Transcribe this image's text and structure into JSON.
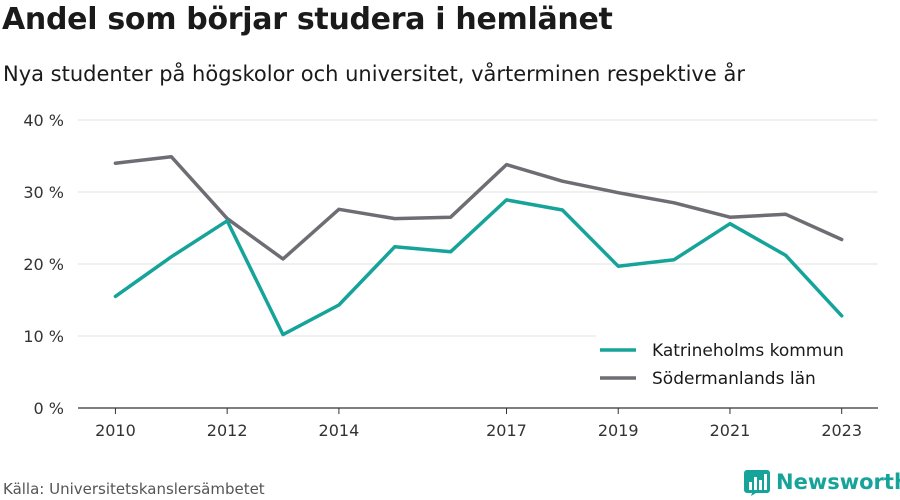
{
  "header": {
    "title": "Andel som börjar studera i hemlänet",
    "subtitle": "Nya studenter på högskolor och universitet, vårterminen respektive år"
  },
  "footer": {
    "source": "Källa: Universitetskanslersämbetet",
    "brand_name": "Newsworthy",
    "brand_icon": "bar-chart-icon"
  },
  "colors": {
    "katrineholm": "#16a39a",
    "sodermanland": "#6d6d73",
    "grid": "#e2e2e2",
    "axis": "#333333",
    "brand": "#16a39a"
  },
  "chart_data": {
    "type": "line",
    "x": [
      2010,
      2011,
      2012,
      2013,
      2014,
      2015,
      2016,
      2017,
      2018,
      2019,
      2020,
      2021,
      2022,
      2023
    ],
    "xticks": [
      "2010",
      "2012",
      "2014",
      "2017",
      "2019",
      "2021",
      "2023"
    ],
    "xtick_values": [
      2010,
      2012,
      2014,
      2017,
      2019,
      2021,
      2023
    ],
    "xlim": [
      2009.33,
      2023.65
    ],
    "ylim": [
      0,
      40
    ],
    "yticks": [
      "0 %",
      "10 %",
      "20 %",
      "30 %",
      "40 %"
    ],
    "ytick_values": [
      0,
      10,
      20,
      30,
      40
    ],
    "grid": true,
    "legend_position": "bottom-right",
    "series": [
      {
        "name": "Katrineholms kommun",
        "color": "#16a39a",
        "values": [
          15.5,
          21.0,
          26.0,
          10.2,
          14.3,
          22.4,
          21.7,
          28.9,
          27.5,
          19.7,
          20.6,
          25.6,
          21.2,
          12.8
        ]
      },
      {
        "name": "Södermanlands län",
        "color": "#6d6d73",
        "values": [
          34.0,
          34.9,
          26.3,
          20.7,
          27.6,
          26.3,
          26.5,
          33.8,
          31.5,
          29.9,
          28.5,
          26.5,
          26.9,
          23.4
        ]
      }
    ]
  }
}
